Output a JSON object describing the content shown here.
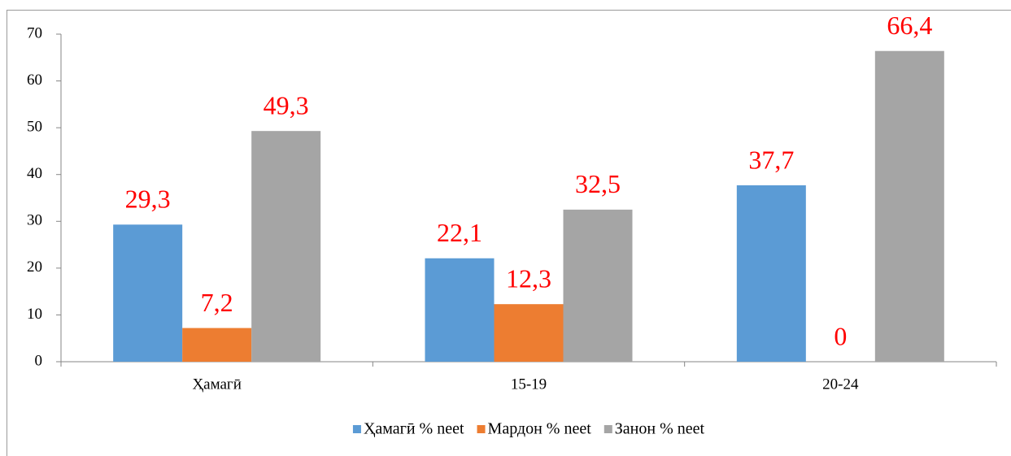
{
  "chart_data": {
    "type": "bar",
    "categories": [
      "Ҳамагӣ",
      "15-19",
      "20-24"
    ],
    "series": [
      {
        "name": "Ҳамагӣ % neet",
        "color": "#5b9bd5",
        "values": [
          29.3,
          22.1,
          37.7
        ],
        "value_labels": [
          "29,3",
          "22,1",
          "37,7"
        ]
      },
      {
        "name": "Мардон % neet",
        "color": "#ed7d31",
        "values": [
          7.2,
          12.3,
          0
        ],
        "value_labels": [
          "7,2",
          "12,3",
          "0"
        ]
      },
      {
        "name": "Занон % neet",
        "color": "#a5a5a5",
        "values": [
          49.3,
          32.5,
          66.4
        ],
        "value_labels": [
          "49,3",
          "32,5",
          "66,4"
        ]
      }
    ],
    "value_label_color": "#ff0000",
    "ylim": [
      0,
      70
    ],
    "yticks": [
      0,
      10,
      20,
      30,
      40,
      50,
      60,
      70
    ],
    "grid": false,
    "legend": "bottom"
  }
}
